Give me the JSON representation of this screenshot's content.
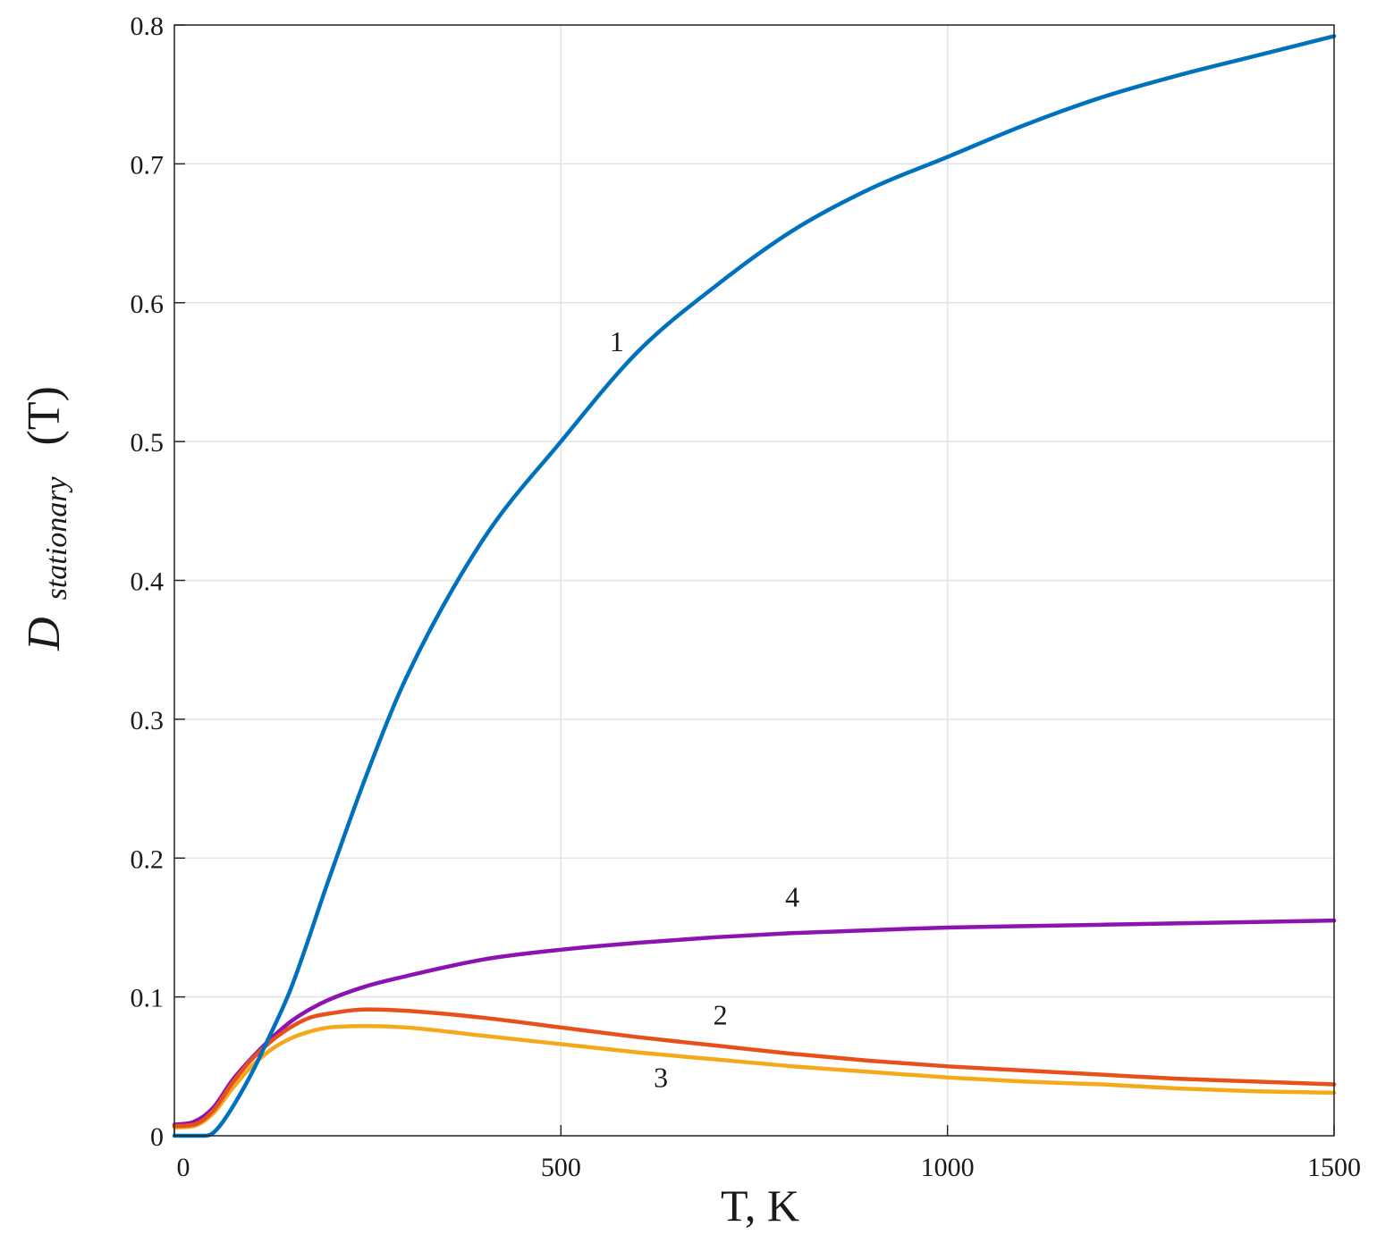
{
  "chart_data": {
    "type": "line",
    "xlabel": "T, K",
    "ylabel": {
      "main": "D",
      "subscript": "stationary",
      "suffix": "(T)"
    },
    "xlim": [
      0,
      1500
    ],
    "ylim": [
      0,
      0.8
    ],
    "x_ticks": [
      0,
      500,
      1000,
      1500
    ],
    "x_tick_labels": [
      "0",
      "500",
      "1000",
      "1500"
    ],
    "y_ticks": [
      0,
      0.1,
      0.2,
      0.3,
      0.4,
      0.5,
      0.6,
      0.7,
      0.8
    ],
    "y_tick_labels": [
      "0",
      "0.1",
      "0.2",
      "0.3",
      "0.4",
      "0.5",
      "0.6",
      "0.7",
      "0.8"
    ],
    "grid": true,
    "legend": "none",
    "series": [
      {
        "label": "1",
        "color": "#0072bd",
        "label_at": [
          563,
          0.565
        ],
        "x": [
          0,
          20,
          40,
          50,
          60,
          70,
          80,
          100,
          120,
          150,
          200,
          250,
          300,
          400,
          500,
          600,
          700,
          800,
          900,
          1000,
          1100,
          1200,
          1300,
          1400,
          1500
        ],
        "y": [
          0,
          0,
          0,
          0.002,
          0.008,
          0.016,
          0.025,
          0.045,
          0.068,
          0.105,
          0.185,
          0.262,
          0.33,
          0.43,
          0.5,
          0.565,
          0.612,
          0.652,
          0.682,
          0.705,
          0.728,
          0.748,
          0.764,
          0.778,
          0.792
        ]
      },
      {
        "label": "2",
        "color": "#e8501b",
        "label_at": [
          697,
          0.08
        ],
        "x": [
          0,
          25,
          50,
          75,
          100,
          125,
          150,
          175,
          200,
          250,
          300,
          400,
          500,
          600,
          700,
          800,
          900,
          1000,
          1100,
          1200,
          1300,
          1400,
          1500
        ],
        "y": [
          0.007,
          0.008,
          0.018,
          0.038,
          0.055,
          0.068,
          0.078,
          0.085,
          0.088,
          0.091,
          0.09,
          0.085,
          0.078,
          0.071,
          0.065,
          0.059,
          0.054,
          0.05,
          0.047,
          0.044,
          0.041,
          0.039,
          0.037
        ]
      },
      {
        "label": "3",
        "color": "#f5a91a",
        "label_at": [
          620,
          0.035
        ],
        "x": [
          0,
          25,
          50,
          75,
          100,
          125,
          150,
          175,
          200,
          250,
          300,
          400,
          500,
          600,
          700,
          800,
          900,
          1000,
          1100,
          1200,
          1300,
          1400,
          1500
        ],
        "y": [
          0.006,
          0.007,
          0.016,
          0.034,
          0.05,
          0.062,
          0.07,
          0.075,
          0.078,
          0.079,
          0.078,
          0.072,
          0.066,
          0.06,
          0.055,
          0.05,
          0.046,
          0.042,
          0.039,
          0.037,
          0.034,
          0.032,
          0.031
        ]
      },
      {
        "label": "4",
        "color": "#8c13b2",
        "label_at": [
          790,
          0.165
        ],
        "x": [
          0,
          25,
          50,
          75,
          100,
          125,
          150,
          175,
          200,
          250,
          300,
          400,
          500,
          600,
          700,
          800,
          900,
          1000,
          1100,
          1200,
          1300,
          1400,
          1500
        ],
        "y": [
          0.008,
          0.01,
          0.02,
          0.04,
          0.056,
          0.07,
          0.082,
          0.091,
          0.098,
          0.108,
          0.115,
          0.127,
          0.134,
          0.139,
          0.143,
          0.146,
          0.148,
          0.15,
          0.151,
          0.152,
          0.153,
          0.154,
          0.155
        ]
      }
    ]
  }
}
